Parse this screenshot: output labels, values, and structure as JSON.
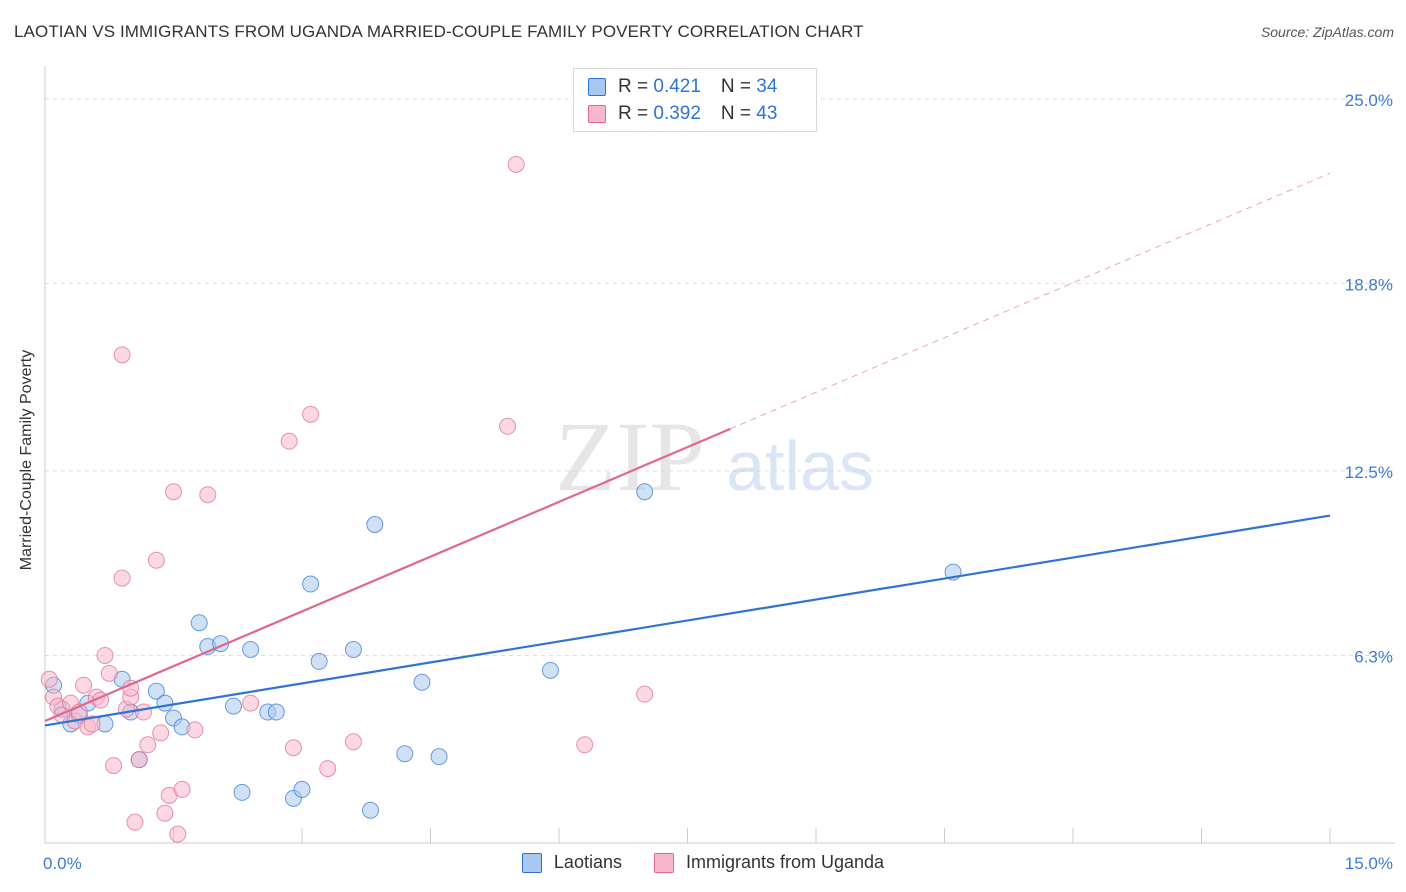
{
  "chart_data": {
    "type": "scatter",
    "title": "LAOTIAN VS IMMIGRANTS FROM UGANDA MARRIED-COUPLE FAMILY POVERTY CORRELATION CHART",
    "source": "Source: ZipAtlas.com",
    "xlabel": "",
    "ylabel": "Married-Couple Family Poverty",
    "xlim": [
      0,
      15
    ],
    "ylim": [
      0,
      25.7
    ],
    "x_tick_labels": [
      {
        "value": 0,
        "label": "0.0%"
      },
      {
        "value": 15,
        "label": "15.0%"
      }
    ],
    "y_ticks": [
      {
        "value": 6.3,
        "label": "6.3%"
      },
      {
        "value": 12.5,
        "label": "12.5%"
      },
      {
        "value": 18.8,
        "label": "18.8%"
      },
      {
        "value": 25.0,
        "label": "25.0%"
      }
    ],
    "watermark": {
      "zip": "ZIP",
      "atlas": "atlas"
    },
    "series": [
      {
        "name": "Laotians",
        "color": "#2f74d0",
        "fill": "#a9c8ef",
        "R": "0.421",
        "N": "34",
        "trend": {
          "x0": 0,
          "y0": 3.95,
          "x1": 15,
          "y1": 11.0,
          "dashed_from": null
        },
        "points": [
          [
            0.1,
            5.3
          ],
          [
            0.2,
            4.5
          ],
          [
            0.3,
            4.0
          ],
          [
            0.4,
            4.3
          ],
          [
            0.5,
            4.7
          ],
          [
            0.7,
            4.0
          ],
          [
            0.9,
            5.5
          ],
          [
            1.0,
            4.4
          ],
          [
            1.1,
            2.8
          ],
          [
            1.3,
            5.1
          ],
          [
            1.4,
            4.7
          ],
          [
            1.5,
            4.2
          ],
          [
            1.6,
            3.9
          ],
          [
            1.8,
            7.4
          ],
          [
            1.9,
            6.6
          ],
          [
            2.05,
            6.7
          ],
          [
            2.2,
            4.6
          ],
          [
            2.3,
            1.7
          ],
          [
            2.4,
            6.5
          ],
          [
            2.6,
            4.4
          ],
          [
            2.7,
            4.4
          ],
          [
            2.9,
            1.5
          ],
          [
            3.0,
            1.8
          ],
          [
            3.1,
            8.7
          ],
          [
            3.2,
            6.1
          ],
          [
            3.6,
            6.5
          ],
          [
            3.8,
            1.1
          ],
          [
            3.85,
            10.7
          ],
          [
            4.2,
            3.0
          ],
          [
            4.4,
            5.4
          ],
          [
            4.6,
            2.9
          ],
          [
            5.9,
            5.8
          ],
          [
            7.0,
            11.8
          ],
          [
            10.6,
            9.1
          ]
        ]
      },
      {
        "name": "Immigrants from Uganda",
        "color": "#e0688f",
        "fill": "#f7b8cb",
        "R": "0.392",
        "N": "43",
        "trend": {
          "x0": 0,
          "y0": 4.1,
          "x1": 15,
          "y1": 22.5,
          "dashed_from": 8.0
        },
        "points": [
          [
            0.05,
            5.5
          ],
          [
            0.1,
            4.9
          ],
          [
            0.15,
            4.6
          ],
          [
            0.2,
            4.3
          ],
          [
            0.3,
            4.7
          ],
          [
            0.35,
            4.1
          ],
          [
            0.4,
            4.4
          ],
          [
            0.45,
            5.3
          ],
          [
            0.5,
            3.9
          ],
          [
            0.55,
            4.0
          ],
          [
            0.6,
            4.9
          ],
          [
            0.65,
            4.8
          ],
          [
            0.7,
            6.3
          ],
          [
            0.75,
            5.7
          ],
          [
            0.8,
            2.6
          ],
          [
            0.9,
            16.4
          ],
          [
            0.9,
            8.9
          ],
          [
            0.95,
            4.5
          ],
          [
            1.0,
            4.9
          ],
          [
            1.0,
            5.2
          ],
          [
            1.05,
            0.7
          ],
          [
            1.1,
            2.8
          ],
          [
            1.15,
            4.4
          ],
          [
            1.2,
            3.3
          ],
          [
            1.3,
            9.5
          ],
          [
            1.35,
            3.7
          ],
          [
            1.4,
            1.0
          ],
          [
            1.45,
            1.6
          ],
          [
            1.5,
            11.8
          ],
          [
            1.55,
            0.3
          ],
          [
            1.6,
            1.8
          ],
          [
            1.75,
            3.8
          ],
          [
            1.9,
            11.7
          ],
          [
            2.4,
            4.7
          ],
          [
            2.85,
            13.5
          ],
          [
            2.9,
            3.2
          ],
          [
            3.1,
            14.4
          ],
          [
            3.3,
            2.5
          ],
          [
            3.6,
            3.4
          ],
          [
            5.4,
            14.0
          ],
          [
            5.5,
            22.8
          ],
          [
            6.3,
            3.3
          ],
          [
            7.0,
            5.0
          ]
        ]
      }
    ]
  }
}
